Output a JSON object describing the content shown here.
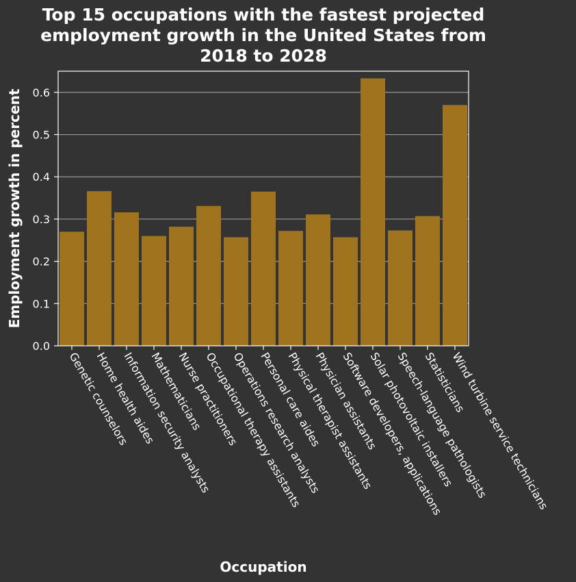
{
  "colors": {
    "background": "#333333",
    "bar": "#a0731e",
    "grid": "#999999",
    "text": "#ffffff",
    "frame": "#ffffff"
  },
  "chart_data": {
    "type": "bar",
    "title_lines": [
      "Top 15 occupations with the fastest projected",
      "employment growth in the United States from",
      "2018 to 2028"
    ],
    "xlabel": "Occupation",
    "ylabel": "Employment growth in percent",
    "ylim": [
      0,
      0.65
    ],
    "yticks": [
      "0.0",
      "0.1",
      "0.2",
      "0.3",
      "0.4",
      "0.5",
      "0.6"
    ],
    "grid": true,
    "categories": [
      "Genetic counselors",
      "Home health aides",
      "Information security analysts",
      "Mathematicians",
      "Nurse practitioners",
      "Occupational therapy assistants",
      "Operations research analysts",
      "Personal care aides",
      "Physical therapist assistants",
      "Physician assistants",
      "Software developers, applications",
      "Solar photovoltaic installers",
      "Speech-language pathologists",
      "Statisticians",
      "Wind turbine service technicians"
    ],
    "values": [
      0.27,
      0.366,
      0.316,
      0.26,
      0.282,
      0.331,
      0.257,
      0.365,
      0.272,
      0.311,
      0.257,
      0.633,
      0.273,
      0.307,
      0.57
    ]
  }
}
